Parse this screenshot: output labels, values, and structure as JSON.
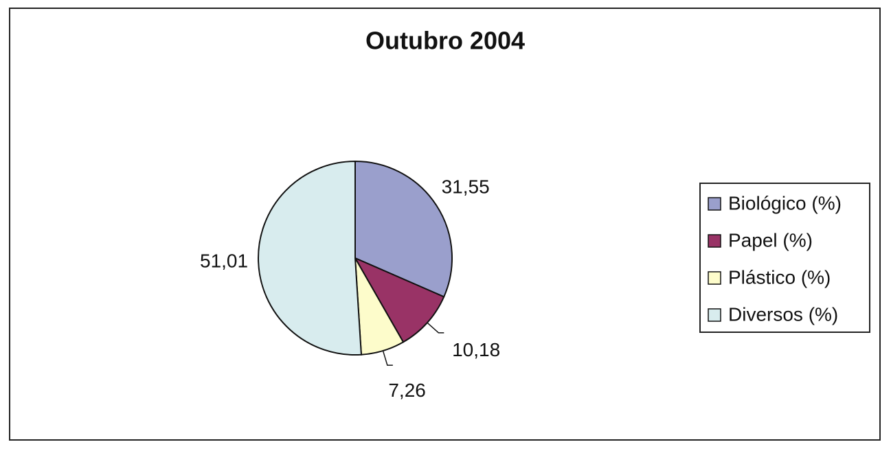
{
  "chart_data": {
    "type": "pie",
    "title": "Outubro 2004",
    "categories": [
      "Biológico (%)",
      "Papel (%)",
      "Plástico (%)",
      "Diversos (%)"
    ],
    "values": [
      31.55,
      10.18,
      7.26,
      51.01
    ],
    "value_labels": [
      "31,55",
      "10,18",
      "7,26",
      "51,01"
    ],
    "colors": [
      "#9a9fcc",
      "#993366",
      "#fdfccb",
      "#d8ecee"
    ],
    "legend": "right"
  }
}
